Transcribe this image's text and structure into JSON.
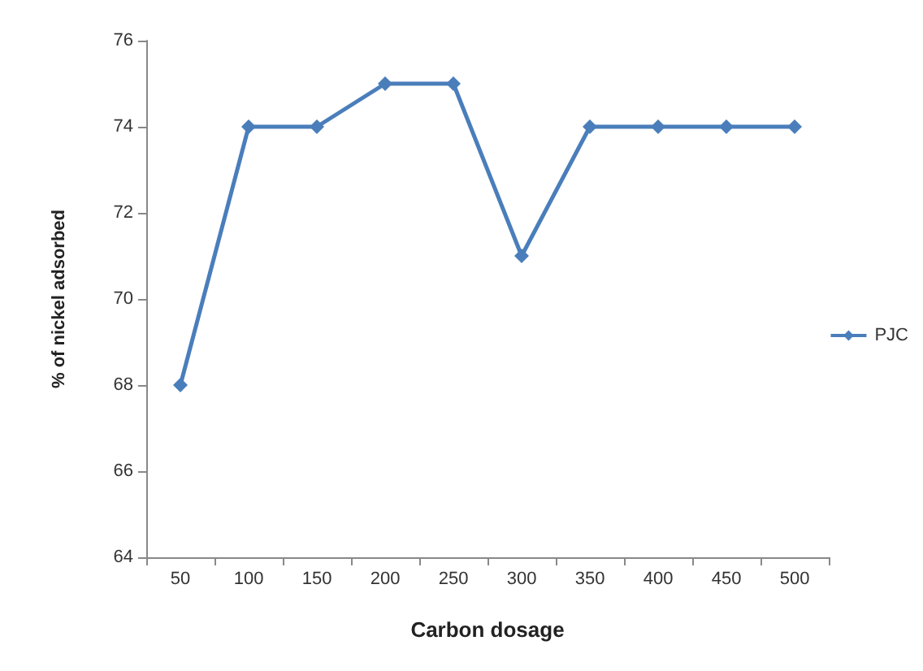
{
  "chart_data": {
    "type": "line",
    "xlabel": "Carbon dosage",
    "ylabel": "% of nickel adsorbed",
    "categories": [
      "50",
      "100",
      "150",
      "200",
      "250",
      "300",
      "350",
      "400",
      "450",
      "500"
    ],
    "series": [
      {
        "name": "PJC",
        "color": "#4a7ebb",
        "values": [
          68,
          74,
          74,
          75,
          75,
          71,
          74,
          74,
          74,
          74
        ]
      }
    ],
    "ylim": [
      64,
      76
    ],
    "yticks": [
      64,
      66,
      68,
      70,
      72,
      74,
      76
    ],
    "grid": false,
    "legend": "right",
    "marker": "diamond",
    "line_style": "solid"
  }
}
